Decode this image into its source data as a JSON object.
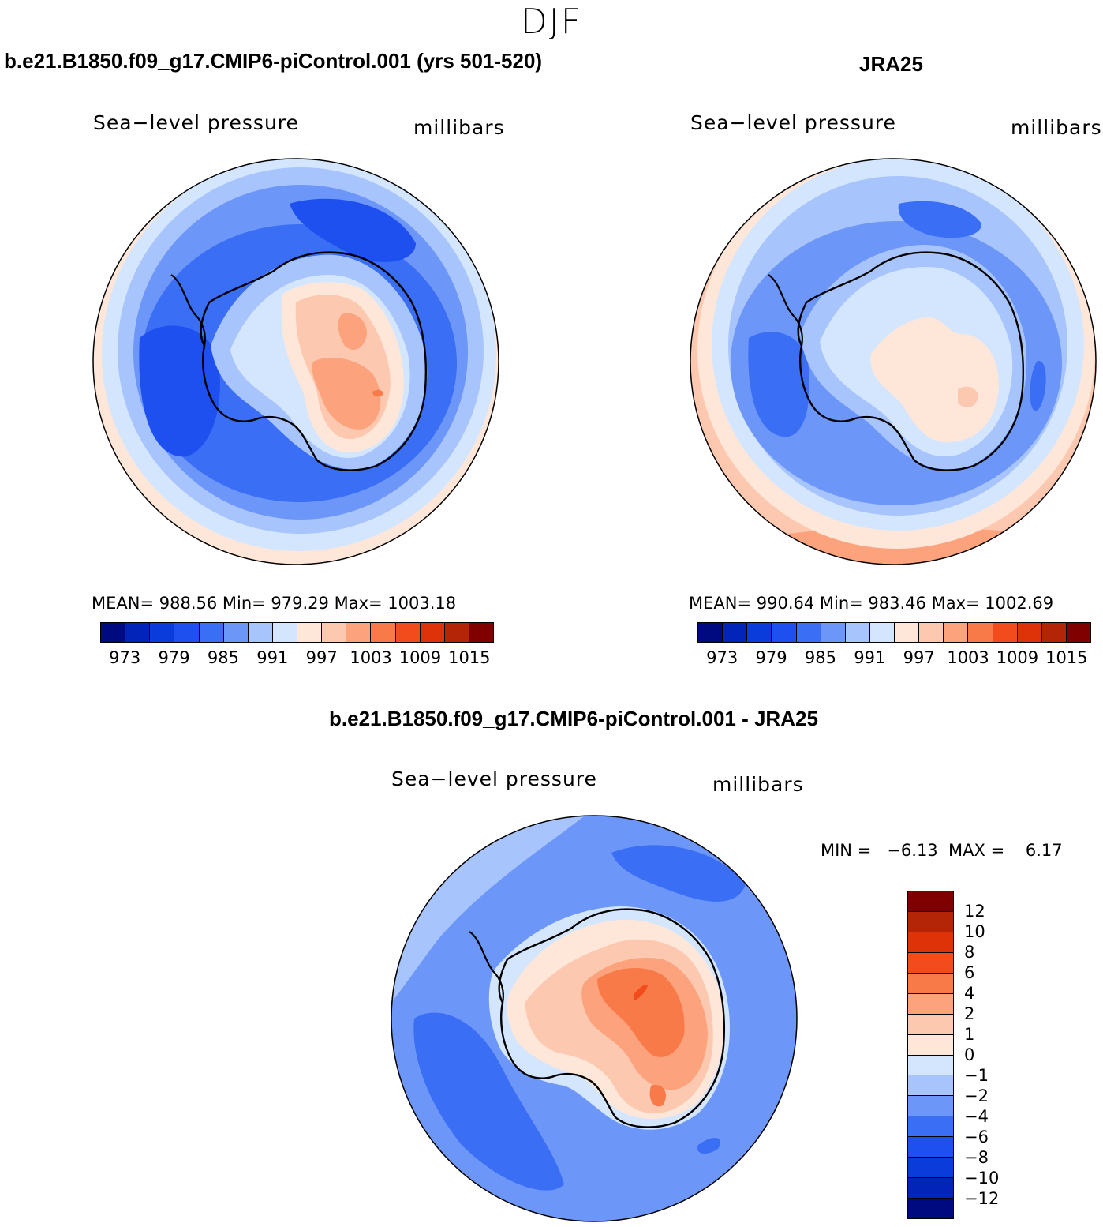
{
  "season": "DJF",
  "panels": [
    {
      "title": "b.e21.B1850.f09_g17.CMIP6-piControl.001 (yrs 501-520)",
      "variable": "Sea−level pressure",
      "units": "millibars",
      "stats": "MEAN= 988.56   Min= 979.29   Max= 1003.18"
    },
    {
      "title": "JRA25",
      "variable": "Sea−level pressure",
      "units": "millibars",
      "stats": "MEAN= 990.64   Min= 983.46   Max= 1002.69"
    }
  ],
  "diff_panel": {
    "title": "b.e21.B1850.f09_g17.CMIP6-piControl.001 - JRA25",
    "variable": "Sea−level pressure",
    "units": "millibars",
    "minmax": "MIN =   −6.13  MAX =    6.17"
  },
  "chart_data": [
    {
      "type": "heatmap",
      "projection": "south-polar-stereographic",
      "title": "b.e21.B1850.f09_g17.CMIP6-piControl.001 (yrs 501-520)",
      "field": "Sea-level pressure",
      "units": "millibars",
      "mean": 988.56,
      "min": 979.29,
      "max": 1003.18,
      "contour_levels": [
        973,
        976,
        979,
        982,
        985,
        988,
        991,
        994,
        997,
        1000,
        1003,
        1006,
        1009,
        1012,
        1015
      ],
      "colorbar_labels": [
        "973",
        "979",
        "985",
        "991",
        "997",
        "1003",
        "1009",
        "1015"
      ]
    },
    {
      "type": "heatmap",
      "projection": "south-polar-stereographic",
      "title": "JRA25",
      "field": "Sea-level pressure",
      "units": "millibars",
      "mean": 990.64,
      "min": 983.46,
      "max": 1002.69,
      "contour_levels": [
        973,
        976,
        979,
        982,
        985,
        988,
        991,
        994,
        997,
        1000,
        1003,
        1006,
        1009,
        1012,
        1015
      ],
      "colorbar_labels": [
        "973",
        "979",
        "985",
        "991",
        "997",
        "1003",
        "1009",
        "1015"
      ]
    },
    {
      "type": "heatmap",
      "projection": "south-polar-stereographic",
      "title": "b.e21.B1850.f09_g17.CMIP6-piControl.001 - JRA25",
      "field": "Sea-level pressure",
      "units": "millibars",
      "min": -6.13,
      "max": 6.17,
      "contour_levels": [
        -12,
        -10,
        -8,
        -6,
        -4,
        -2,
        -1,
        0,
        1,
        2,
        4,
        6,
        8,
        10,
        12
      ],
      "colorbar_labels": [
        "−12",
        "−10",
        "−8",
        "−6",
        "−4",
        "−2",
        "−1",
        "0",
        "1",
        "2",
        "4",
        "6",
        "8",
        "10",
        "12"
      ]
    }
  ],
  "colors": {
    "abs_scale": [
      "#000a80",
      "#0324b8",
      "#0a3cdc",
      "#1e50f0",
      "#3a6ef4",
      "#6c96f8",
      "#a8c4fc",
      "#d4e6fe",
      "#fee6d8",
      "#fdc8b0",
      "#fca27c",
      "#f77a48",
      "#f24c1c",
      "#de3208",
      "#b42406",
      "#800000"
    ],
    "diff_scale": [
      "#000a80",
      "#0324b8",
      "#0a3cdc",
      "#1e50f0",
      "#3a6ef4",
      "#6c96f8",
      "#a8c4fc",
      "#d4e6fe",
      "#fee6d8",
      "#fdc8b0",
      "#fca27c",
      "#f77a48",
      "#f24c1c",
      "#de3208",
      "#b42406",
      "#800000"
    ]
  }
}
